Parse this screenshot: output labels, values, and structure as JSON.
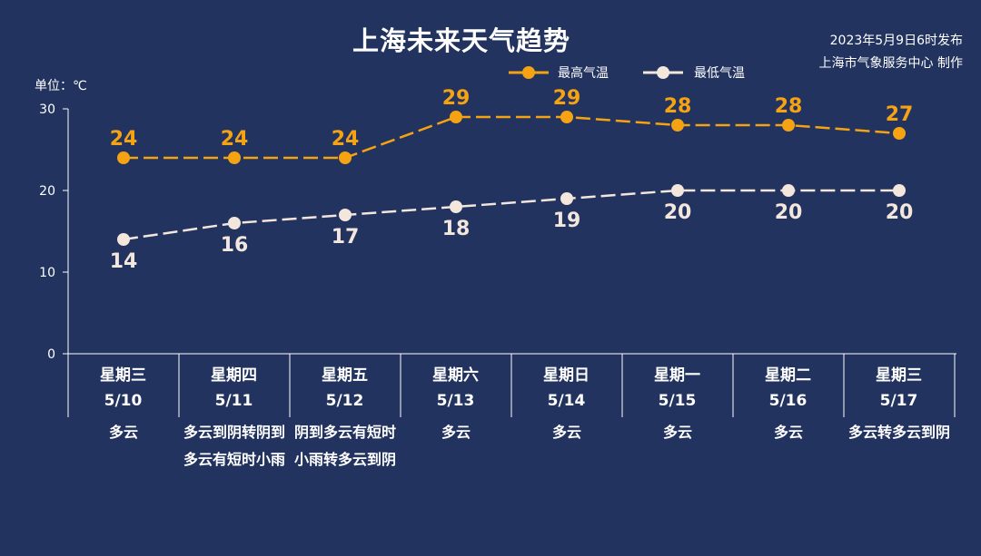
{
  "header": {
    "title": "上海未来天气趋势",
    "publish_time": "2023年5月9日6时发布",
    "publisher": "上海市气象服务中心 制作",
    "unit": "单位：℃"
  },
  "colors": {
    "background": "#22335f",
    "high": "#f5a312",
    "low": "#f3e6dc",
    "text": "#ffffff"
  },
  "days": [
    {
      "weekday": "星期三",
      "date": "5/10",
      "weather": "多云"
    },
    {
      "weekday": "星期四",
      "date": "5/11",
      "weather": "多云到阴转阴到多云有短时小雨"
    },
    {
      "weekday": "星期五",
      "date": "5/12",
      "weather": "阴到多云有短时小雨转多云到阴"
    },
    {
      "weekday": "星期六",
      "date": "5/13",
      "weather": "多云"
    },
    {
      "weekday": "星期日",
      "date": "5/14",
      "weather": "多云"
    },
    {
      "weekday": "星期一",
      "date": "5/15",
      "weather": "多云"
    },
    {
      "weekday": "星期二",
      "date": "5/16",
      "weather": "多云"
    },
    {
      "weekday": "星期三",
      "date": "5/17",
      "weather": "多云转多云到阴"
    }
  ],
  "chart_data": {
    "type": "line",
    "title": "上海未来天气趋势",
    "ylabel": "单位：℃",
    "ylim": [
      0,
      30
    ],
    "yticks": [
      0,
      10,
      20,
      30
    ],
    "categories": [
      "5/10",
      "5/11",
      "5/12",
      "5/13",
      "5/14",
      "5/15",
      "5/16",
      "5/17"
    ],
    "legend_position": "top-right",
    "series": [
      {
        "name": "最高气温",
        "values": [
          24,
          24,
          24,
          29,
          29,
          28,
          28,
          27
        ],
        "color": "#f5a312",
        "line_style": "dashed",
        "labels": "above"
      },
      {
        "name": "最低气温",
        "values": [
          14,
          16,
          17,
          18,
          19,
          20,
          20,
          20
        ],
        "color": "#f3e6dc",
        "line_style": "dashed",
        "labels": "below"
      }
    ]
  }
}
